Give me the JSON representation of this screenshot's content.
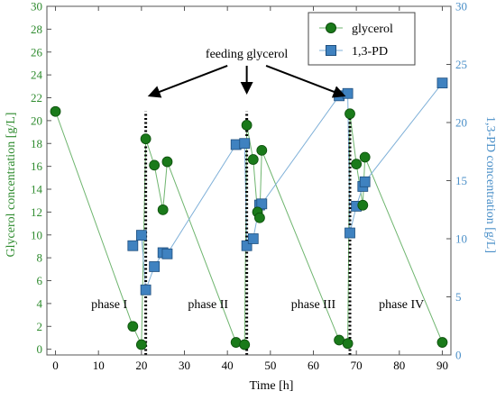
{
  "colors": {
    "glycerol": "#1a7a1a",
    "glycerol_edge": "#0b4d0b",
    "pd": "#3f82c0",
    "pd_edge": "#1f4f7e",
    "pd_axis": "#4a8fc8",
    "glycerol_axis": "#2e8b2e",
    "frame": "#555555",
    "feed_line": "#000000"
  },
  "chart_data": {
    "type": "scatter",
    "xlabel": "Time [h]",
    "ylabel_left": "Glycerol concentration [g/L]",
    "ylabel_right": "1,3-PD concentration [g/L]",
    "xlim": [
      -2,
      92
    ],
    "ylim_left": [
      -0.5,
      30
    ],
    "ylim_right": [
      0,
      30
    ],
    "x_ticks": [
      0,
      10,
      20,
      30,
      40,
      50,
      60,
      70,
      80,
      90
    ],
    "y_ticks_left": [
      0,
      2,
      4,
      6,
      8,
      10,
      12,
      14,
      16,
      18,
      20,
      22,
      24,
      26,
      28,
      30
    ],
    "y_ticks_right": [
      0,
      5,
      10,
      15,
      20,
      25,
      30
    ],
    "legend_position": "top-right",
    "series": [
      {
        "name": "glycerol",
        "marker": "circle",
        "axis": "left",
        "x": [
          0,
          18,
          20,
          21,
          23,
          25,
          26,
          42,
          44,
          44.5,
          46,
          47,
          47.5,
          48,
          66,
          68,
          68.5,
          70,
          71.5,
          72,
          90
        ],
        "y": [
          20.8,
          2.0,
          0.4,
          18.4,
          16.1,
          12.2,
          16.4,
          0.6,
          0.4,
          19.6,
          16.6,
          12.0,
          11.5,
          17.4,
          0.8,
          0.5,
          20.6,
          16.2,
          12.6,
          16.8,
          0.6
        ]
      },
      {
        "name": "1,3-PD",
        "marker": "square",
        "axis": "right",
        "x": [
          18,
          20,
          21,
          23,
          25,
          26,
          42,
          44,
          44.5,
          46,
          47.5,
          48,
          66,
          68,
          68.5,
          70,
          71.5,
          72,
          90
        ],
        "y": [
          9.4,
          10.3,
          5.6,
          7.6,
          8.8,
          8.7,
          18.1,
          18.2,
          9.4,
          10.0,
          12.9,
          13.0,
          22.3,
          22.5,
          10.5,
          12.8,
          14.5,
          14.9,
          23.4
        ]
      }
    ],
    "feed_lines_x": [
      21,
      44.5,
      68.5
    ],
    "feed_line_top": 20.8,
    "annotation": {
      "text": "feeding glycerol",
      "anchor_time": 44.5,
      "anchor_level": 25.5,
      "arrow_tails": [
        [
          40,
          24.8
        ],
        [
          44.5,
          24.8
        ],
        [
          49,
          24.8
        ]
      ],
      "arrow_heads": [
        [
          22,
          22.2
        ],
        [
          44.5,
          22.5
        ],
        [
          67,
          22.2
        ]
      ]
    },
    "phase_labels": [
      {
        "text": "phase I",
        "time": 12.5,
        "level": 3.6
      },
      {
        "text": "phase II",
        "time": 35.5,
        "level": 3.6
      },
      {
        "text": "phase III",
        "time": 60,
        "level": 3.6
      },
      {
        "text": "phase IV",
        "time": 80.5,
        "level": 3.6
      }
    ]
  }
}
